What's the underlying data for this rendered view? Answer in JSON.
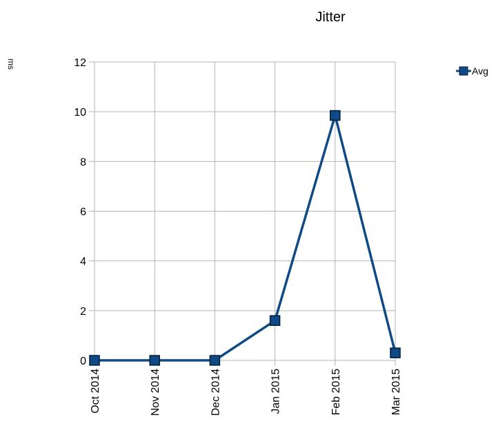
{
  "chart_data": {
    "type": "line",
    "title": "Jitter",
    "xlabel": "",
    "ylabel": "ms",
    "categories": [
      "Oct 2014",
      "Nov 2014",
      "Dec 2014",
      "Jan 2015",
      "Feb 2015",
      "Mar 2015"
    ],
    "series": [
      {
        "name": "Avg",
        "values": [
          0,
          0,
          0,
          1.6,
          9.85,
          0.3
        ],
        "color": "#0f4a86",
        "marker": "square"
      }
    ],
    "ylim": [
      0,
      12
    ],
    "yticks": [
      "0",
      "2",
      "4",
      "6",
      "8",
      "10",
      "12"
    ],
    "grid": true,
    "legend": "top-right"
  }
}
